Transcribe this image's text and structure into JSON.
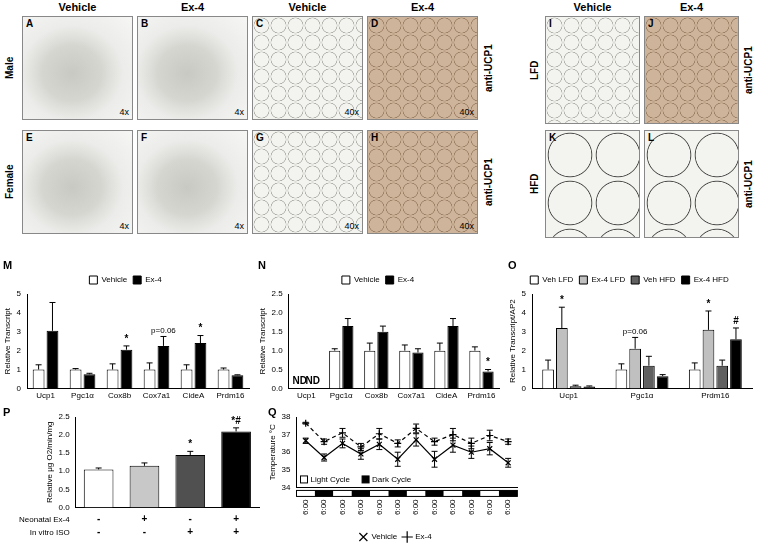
{
  "image_panels": {
    "groups": [
      {
        "columns": [
          "Vehicle",
          "Ex-4",
          "Vehicle",
          "Ex-4"
        ],
        "rows": [
          {
            "name": "Male",
            "stain": "anti-UCP1",
            "panels": [
              {
                "letter": "A",
                "magnification": "4x"
              },
              {
                "letter": "B",
                "magnification": "4x"
              },
              {
                "letter": "C",
                "magnification": "40x"
              },
              {
                "letter": "D",
                "magnification": "40x"
              }
            ]
          },
          {
            "name": "Female",
            "stain": "anti-UCP1",
            "panels": [
              {
                "letter": "E",
                "magnification": "4x"
              },
              {
                "letter": "F",
                "magnification": "4x"
              },
              {
                "letter": "G",
                "magnification": "40x"
              },
              {
                "letter": "H",
                "magnification": "40x"
              }
            ]
          }
        ]
      },
      {
        "columns": [
          "Vehicle",
          "Ex-4"
        ],
        "rows": [
          {
            "name": "LFD",
            "stain": "anti-UCP1",
            "panels": [
              {
                "letter": "I"
              },
              {
                "letter": "J"
              }
            ]
          },
          {
            "name": "HFD",
            "stain": "anti-UCP1",
            "panels": [
              {
                "letter": "K"
              },
              {
                "letter": "L"
              }
            ]
          }
        ]
      }
    ]
  },
  "chart_data": [
    {
      "panel": "M",
      "type": "bar",
      "y_label": "Relative Transcript",
      "categories": [
        "Ucp1",
        "Pgc1α",
        "Cox8b",
        "Cox7a1",
        "CideA",
        "Prdm16"
      ],
      "series": [
        {
          "name": "Vehicle",
          "color": "#ffffff",
          "values": [
            1,
            1,
            1,
            1,
            1,
            1
          ],
          "errors": [
            0.25,
            0.05,
            0.3,
            0.35,
            0.25,
            0.08
          ]
        },
        {
          "name": "Ex-4",
          "color": "#000000",
          "values": [
            3.05,
            0.75,
            2.05,
            2.25,
            2.4,
            0.7
          ],
          "errors": [
            1.5,
            0.05,
            0.2,
            0.5,
            0.4,
            0.02
          ]
        }
      ],
      "annotations": [
        {
          "text": "*",
          "category": "Cox8b",
          "series": "Ex-4"
        },
        {
          "text": "p=0.06",
          "category": "Cox7a1",
          "series": "Ex-4"
        },
        {
          "text": "*",
          "category": "CideA",
          "series": "Ex-4"
        }
      ],
      "ylim": [
        0,
        5
      ],
      "yticks": [
        0,
        1,
        2,
        3,
        4,
        5
      ],
      "grid": false,
      "legend": "top"
    },
    {
      "panel": "N",
      "type": "bar",
      "y_label": "Relative Transcript",
      "categories": [
        "Ucp1",
        "Pgc1α",
        "Cox8b",
        "Cox7a1",
        "CideA",
        "Prdm16"
      ],
      "series": [
        {
          "name": "Vehicle",
          "color": "#ffffff",
          "values": [
            null,
            1,
            1,
            1,
            1,
            1
          ],
          "errors": [
            null,
            0.05,
            0.2,
            0.15,
            0.2,
            0.1
          ]
        },
        {
          "name": "Ex-4",
          "color": "#000000",
          "values": [
            null,
            1.65,
            1.5,
            0.95,
            1.65,
            0.45
          ],
          "errors": [
            null,
            0.2,
            0.15,
            0.1,
            0.2,
            0.05
          ]
        }
      ],
      "annotations": [
        {
          "text": "ND",
          "category": "Ucp1",
          "series": "Vehicle"
        },
        {
          "text": "ND",
          "category": "Ucp1",
          "series": "Ex-4"
        },
        {
          "text": "*",
          "category": "Prdm16",
          "series": "Ex-4"
        }
      ],
      "ylim": [
        0,
        2.5
      ],
      "yticks": [
        {
          "value": 0,
          "label": "0.0"
        },
        0.5,
        {
          "value": 1,
          "label": "1.0"
        },
        1.5,
        {
          "value": 2,
          "label": "2.0"
        },
        2.5
      ],
      "grid": false,
      "legend": "top"
    },
    {
      "panel": "O",
      "type": "bar",
      "y_label": "Relative Transcript/AP2",
      "categories": [
        "Ucp1",
        "Pgc1α",
        "Prdm16"
      ],
      "series": [
        {
          "name": "Veh LFD",
          "color": "#ffffff",
          "values": [
            1,
            1,
            1
          ],
          "errors": [
            0.5,
            0.3,
            0.35
          ]
        },
        {
          "name": "Ex-4 LFD",
          "color": "#c0c0c0",
          "values": [
            3.2,
            2.1,
            3.1
          ],
          "errors": [
            1.1,
            0.6,
            1.0
          ]
        },
        {
          "name": "Veh HFD",
          "color": "#606060",
          "values": [
            0.12,
            1.2,
            1.2
          ],
          "errors": [
            0.05,
            0.5,
            0.3
          ]
        },
        {
          "name": "Ex-4 HFD",
          "color": "#000000",
          "values": [
            0.1,
            0.65,
            2.6
          ],
          "errors": [
            0.03,
            0.08,
            0.6
          ]
        }
      ],
      "annotations": [
        {
          "text": "*",
          "category": "Ucp1",
          "series": "Ex-4 LFD"
        },
        {
          "text": "p=0.06",
          "category": "Pgc1α",
          "series": "Ex-4 LFD"
        },
        {
          "text": "*",
          "category": "Prdm16",
          "series": "Ex-4 LFD"
        },
        {
          "text": "#",
          "category": "Prdm16",
          "series": "Ex-4 HFD"
        }
      ],
      "ylim": [
        0,
        5
      ],
      "yticks": [
        0,
        1,
        2,
        3,
        4,
        5
      ],
      "grid": false,
      "legend": "top"
    },
    {
      "panel": "P",
      "type": "bar",
      "y_label": "Relative μg O2/min/mg",
      "categories": [
        null,
        null,
        null,
        null
      ],
      "series": [
        {
          "colors": [
            "#ffffff",
            "#c8c8c8",
            "#505050",
            "#000000"
          ],
          "values": [
            1.05,
            1.15,
            1.45,
            2.1
          ],
          "errors": [
            0.04,
            0.08,
            0.1,
            0.1
          ]
        }
      ],
      "conditions": [
        {
          "name": "Neonatal Ex-4",
          "values": [
            "-",
            "+",
            "-",
            "+"
          ]
        },
        {
          "name": "In vitro ISO",
          "values": [
            "-",
            "-",
            "+",
            "+"
          ]
        }
      ],
      "annotations": [
        {
          "text": "*",
          "index": 2
        },
        {
          "text": "*#",
          "index": 3
        }
      ],
      "ylim": [
        0,
        2.5
      ],
      "yticks": [
        {
          "value": 0,
          "label": "0.0"
        },
        0.5,
        {
          "value": 1,
          "label": "1.0"
        },
        1.5,
        {
          "value": 2,
          "label": "2.0"
        },
        2.5
      ],
      "grid": false
    },
    {
      "panel": "Q",
      "type": "line",
      "y_label": "Temperature °C",
      "categories": [
        "6:00",
        "6:00",
        "6:00",
        "6:00",
        "6:00",
        "6:00",
        "6:00",
        "6:00",
        "6:00",
        "6:00",
        "6:00",
        "6:00"
      ],
      "series": [
        {
          "name": "Vehicle",
          "color": "#000000",
          "marker": "x",
          "line_style": "solid",
          "values": [
            36.65,
            35.7,
            36.5,
            35.9,
            36.45,
            35.6,
            36.7,
            35.6,
            36.4,
            36.0,
            36.2,
            35.4
          ],
          "errors": [
            0.15,
            0.2,
            0.25,
            0.3,
            0.3,
            0.4,
            0.35,
            0.45,
            0.4,
            0.35,
            0.35,
            0.25
          ]
        },
        {
          "name": "Ex-4",
          "color": "#000000",
          "marker": "+",
          "line_style": "dashed",
          "values": [
            37.65,
            36.6,
            37.1,
            36.3,
            37.05,
            36.5,
            37.35,
            36.6,
            37.0,
            36.5,
            36.95,
            36.6
          ],
          "errors": [
            0.05,
            0.15,
            0.25,
            0.2,
            0.3,
            0.2,
            0.25,
            0.2,
            0.35,
            0.3,
            0.3,
            0.15
          ]
        }
      ],
      "cycle_legend": [
        "Light Cycle",
        "Dark Cycle"
      ],
      "ylim": [
        34,
        38
      ],
      "yticks": [
        34,
        35,
        36,
        37,
        38
      ],
      "grid": false,
      "legend": "bottom"
    }
  ]
}
